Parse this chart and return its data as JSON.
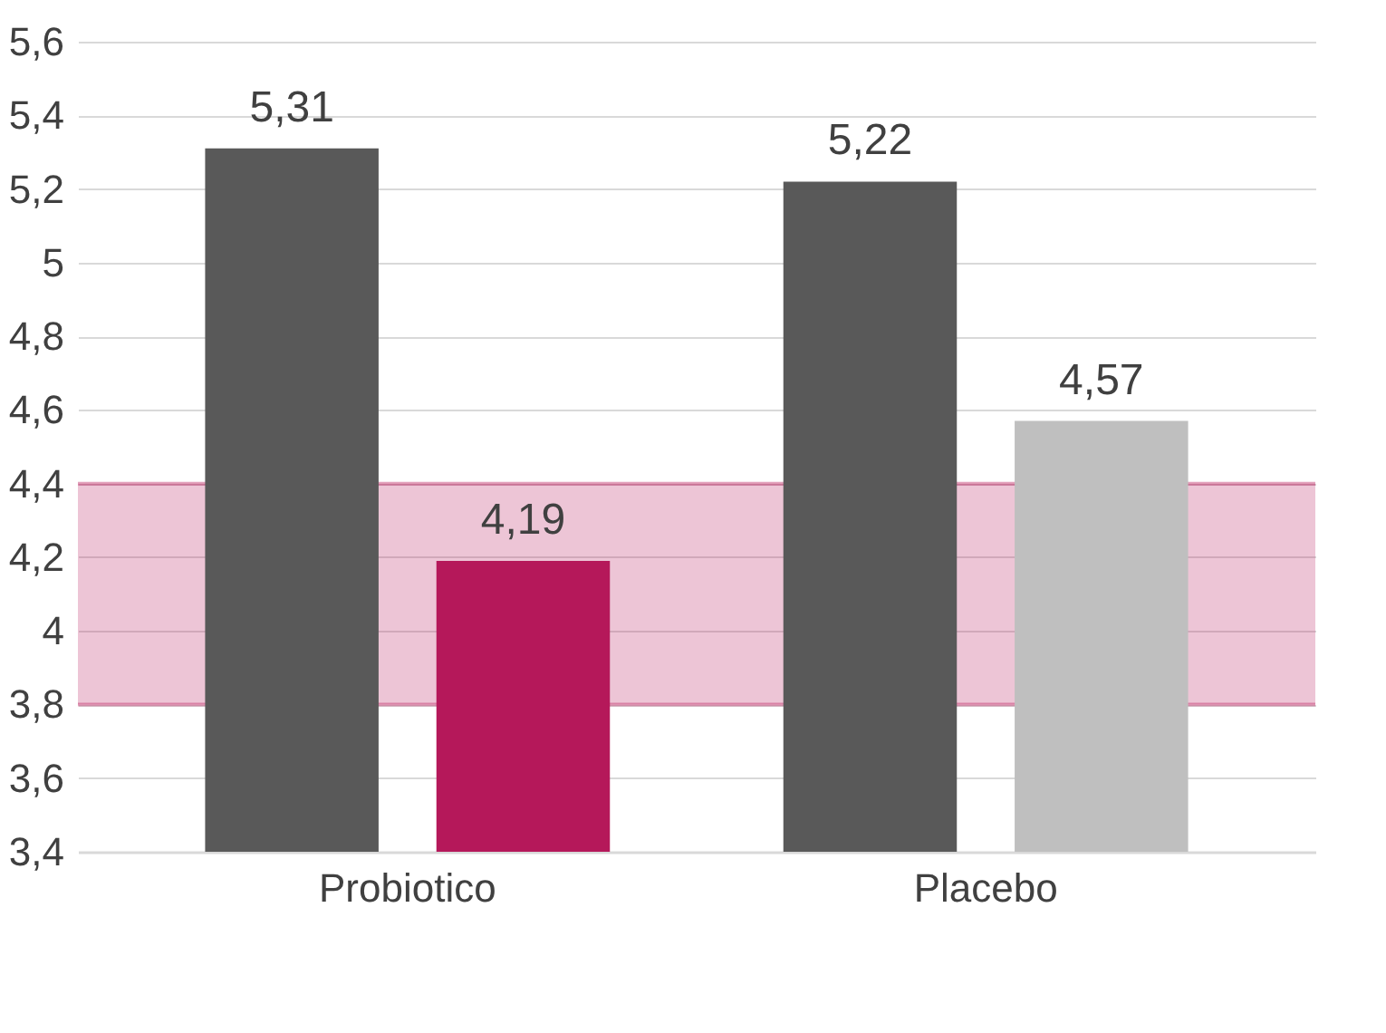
{
  "chart_data": {
    "type": "bar",
    "categories": [
      "Probiotico",
      "Placebo"
    ],
    "series": [
      {
        "color": "#595959",
        "values": [
          5.31,
          5.22
        ],
        "value_labels": [
          "5,31",
          "5,22"
        ]
      },
      {
        "colors": [
          "#b5185a",
          "#bfbfbf"
        ],
        "values": [
          4.19,
          4.57
        ],
        "value_labels": [
          "4,19",
          "4,57"
        ]
      }
    ],
    "ylim": [
      3.4,
      5.6
    ],
    "yticks": [
      {
        "value": 3.4,
        "label": "3,4"
      },
      {
        "value": 3.6,
        "label": "3,6"
      },
      {
        "value": 3.8,
        "label": "3,8"
      },
      {
        "value": 4,
        "label": "4"
      },
      {
        "value": 4.2,
        "label": "4,2"
      },
      {
        "value": 4.4,
        "label": "4,4"
      },
      {
        "value": 4.6,
        "label": "4,6"
      },
      {
        "value": 4.8,
        "label": "4,8"
      },
      {
        "value": 5,
        "label": "5"
      },
      {
        "value": 5.2,
        "label": "5,2"
      },
      {
        "value": 5.4,
        "label": "5,4"
      },
      {
        "value": 5.6,
        "label": "5,6"
      }
    ],
    "bands": [
      {
        "axis": "y",
        "from": 3.8,
        "to": 4.4,
        "color": "#c0306a"
      }
    ],
    "grid": "y"
  }
}
